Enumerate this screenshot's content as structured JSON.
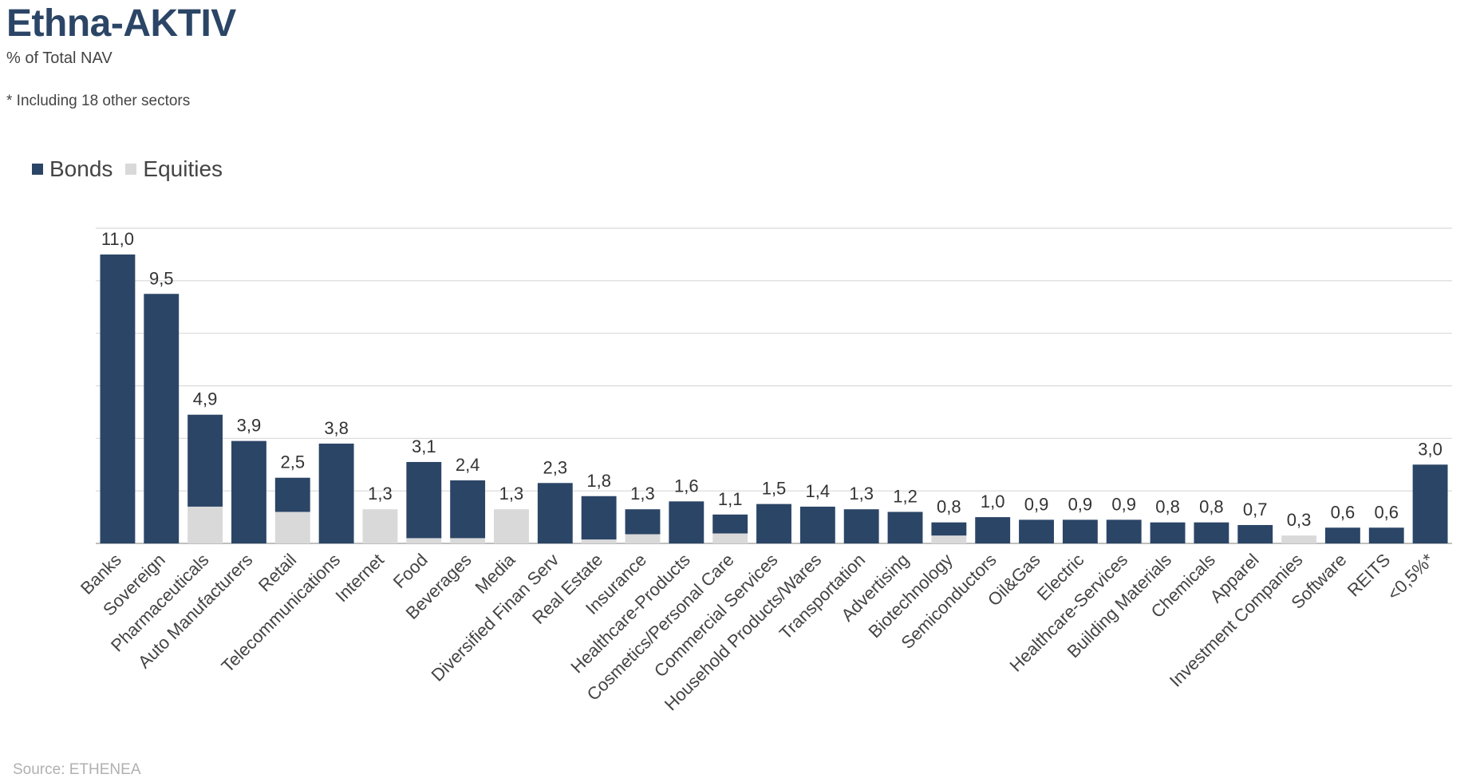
{
  "chart_data": {
    "type": "bar",
    "stacked": true,
    "title": "Ethna-AKTIV",
    "subtitle": "% of Total NAV",
    "note": "* Including 18 other sectors",
    "source": "Source: ETHENEA",
    "legend_position": "top-left",
    "grid": true,
    "ylim": [
      0,
      12
    ],
    "categories": [
      "Banks",
      "Sovereign",
      "Pharmaceuticals",
      "Auto Manufacturers",
      "Retail",
      "Telecommunications",
      "Internet",
      "Food",
      "Beverages",
      "Media",
      "Diversified Finan Serv",
      "Real Estate",
      "Insurance",
      "Healthcare-Products",
      "Cosmetics/Personal Care",
      "Commercial Services",
      "Household Products/Wares",
      "Transportation",
      "Advertising",
      "Biotechnology",
      "Semiconductors",
      "Oil&Gas",
      "Electric",
      "Healthcare-Services",
      "Building Materials",
      "Chemicals",
      "Apparel",
      "Investment Companies",
      "Software",
      "REITS",
      "<0,5%*"
    ],
    "totals": [
      "11,0",
      "9,5",
      "4,9",
      "3,9",
      "2,5",
      "3,8",
      "1,3",
      "3,1",
      "2,4",
      "1,3",
      "2,3",
      "1,8",
      "1,3",
      "1,6",
      "1,1",
      "1,5",
      "1,4",
      "1,3",
      "1,2",
      "0,8",
      "1,0",
      "0,9",
      "0,9",
      "0,9",
      "0,8",
      "0,8",
      "0,7",
      "0,3",
      "0,6",
      "0,6",
      "3,0"
    ],
    "series": [
      {
        "name": "Bonds",
        "color": "#2b4566",
        "values": [
          11.0,
          9.5,
          3.5,
          3.9,
          1.3,
          3.8,
          0.0,
          2.9,
          2.2,
          0.0,
          2.3,
          1.65,
          0.95,
          1.6,
          0.72,
          1.5,
          1.4,
          1.3,
          1.2,
          0.5,
          1.0,
          0.9,
          0.9,
          0.9,
          0.8,
          0.8,
          0.7,
          0.0,
          0.6,
          0.6,
          3.0
        ]
      },
      {
        "name": "Equities",
        "color": "#d9d9d9",
        "values": [
          0.0,
          0.0,
          1.4,
          0.0,
          1.2,
          0.0,
          1.3,
          0.2,
          0.2,
          1.3,
          0.0,
          0.15,
          0.35,
          0.0,
          0.38,
          0.0,
          0.0,
          0.0,
          0.0,
          0.3,
          0.0,
          0.0,
          0.0,
          0.0,
          0.0,
          0.0,
          0.0,
          0.3,
          0.0,
          0.0,
          0.0
        ]
      }
    ]
  }
}
